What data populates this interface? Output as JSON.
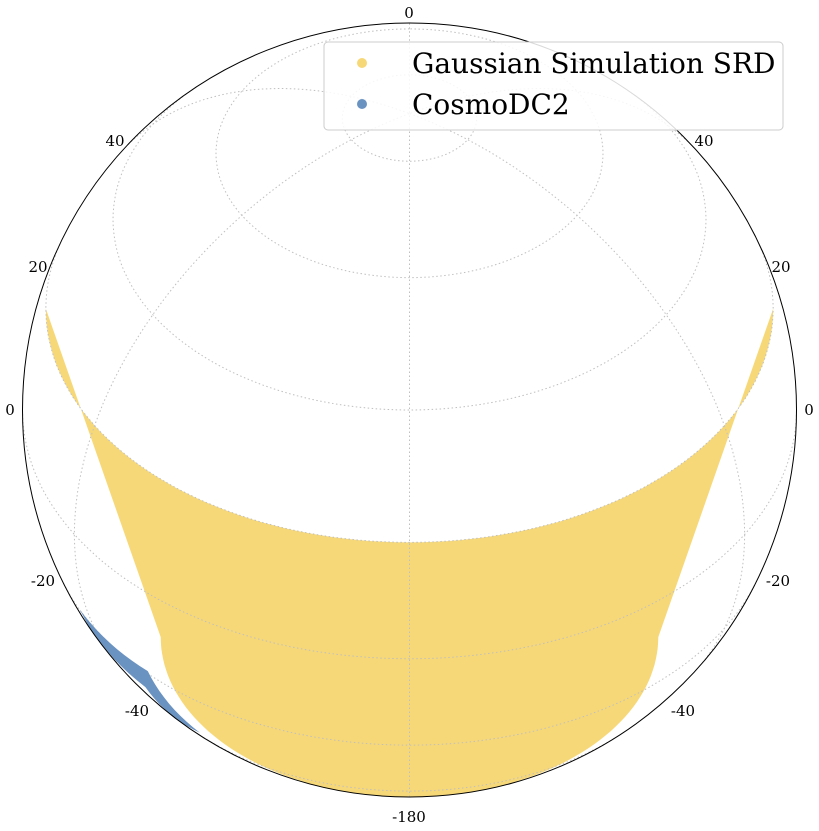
{
  "chart_data": {
    "type": "scatter",
    "projection": "orthographic",
    "grid": true,
    "legend_placement": "top-right",
    "series": [
      {
        "name": "Gaussian Simulation SRD",
        "color": "#f7d878",
        "region": "band",
        "dec_range": [
          -50,
          20
        ],
        "ra_range": [
          -180,
          180
        ]
      },
      {
        "name": "CosmoDC2",
        "color": "#6a93c2",
        "region": "patch",
        "dec_range": [
          -45,
          -27
        ],
        "ra_range": [
          50,
          73
        ]
      }
    ],
    "tick_labels": {
      "top": "0",
      "upper_left": "40",
      "upper_right": "40",
      "mid_left": "20",
      "mid_right": "20",
      "left": "0",
      "right": "0",
      "lower_left_20": "-20",
      "lower_right_20": "-20",
      "lower_left_40": "-40",
      "lower_right_40": "-40",
      "bottom": "-180"
    }
  }
}
